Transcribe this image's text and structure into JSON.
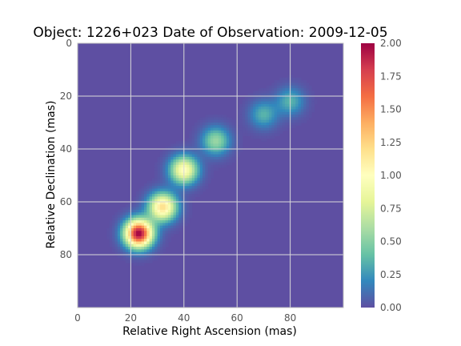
{
  "chart_data": {
    "type": "heatmap",
    "title": "Object: 1226+023   Date of Observation: 2009-12-05",
    "xlabel": "Relative Right Ascension (mas)",
    "ylabel": "Relative Declination (mas)",
    "xlim": [
      0,
      100
    ],
    "ylim": [
      100,
      0
    ],
    "x_ticks": [
      "0",
      "20",
      "40",
      "60",
      "80"
    ],
    "y_ticks": [
      "0",
      "20",
      "40",
      "60",
      "80"
    ],
    "grid": true,
    "colormap": "Spectral_r",
    "colorbar": {
      "range": [
        0.0,
        2.0
      ],
      "ticks": [
        "0.00",
        "0.25",
        "0.50",
        "0.75",
        "1.00",
        "1.25",
        "1.50",
        "1.75",
        "2.00"
      ]
    },
    "components": [
      {
        "x": 23,
        "y": 72,
        "peak": 2.0
      },
      {
        "x": 32,
        "y": 62,
        "peak": 1.2
      },
      {
        "x": 40,
        "y": 48,
        "peak": 1.0
      },
      {
        "x": 52,
        "y": 37,
        "peak": 0.55
      },
      {
        "x": 70,
        "y": 27,
        "peak": 0.35
      },
      {
        "x": 80,
        "y": 22,
        "peak": 0.35
      }
    ],
    "colors": {
      "background": "#5e4fa2",
      "grid": "#d9d9d9",
      "frame": "#bfbfbf"
    }
  }
}
